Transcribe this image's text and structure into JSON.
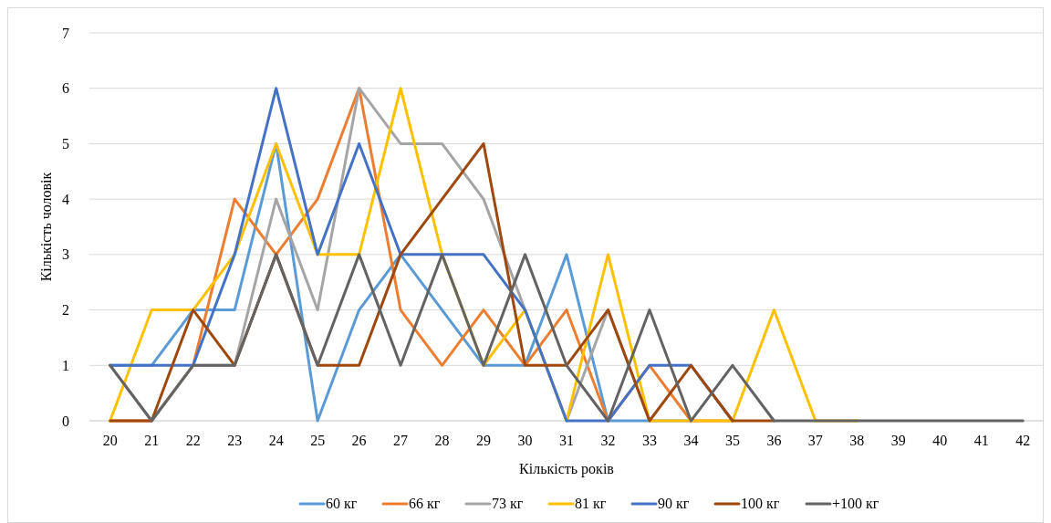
{
  "chart_data": {
    "type": "line",
    "xlabel": "Кількість років",
    "ylabel": "Кількість чоловік",
    "categories": [
      "20",
      "21",
      "22",
      "23",
      "24",
      "25",
      "26",
      "27",
      "28",
      "29",
      "30",
      "31",
      "32",
      "33",
      "34",
      "35",
      "36",
      "37",
      "38",
      "39",
      "40",
      "41",
      "42"
    ],
    "ylim": [
      0,
      7
    ],
    "yticks": [
      0,
      1,
      2,
      3,
      4,
      5,
      6,
      7
    ],
    "grid": "y",
    "legend": "bottom",
    "line_style": "solid",
    "marker": "none",
    "series": [
      {
        "name": "60 кг",
        "color": "#5b9bd5",
        "values": [
          1,
          1,
          2,
          2,
          5,
          0,
          2,
          3,
          2,
          1,
          1,
          3,
          0,
          0,
          0,
          null,
          null,
          null,
          null,
          null,
          null,
          null,
          null
        ]
      },
      {
        "name": "66 кг",
        "color": "#ed7d31",
        "values": [
          0,
          0,
          1,
          4,
          3,
          4,
          6,
          2,
          1,
          2,
          1,
          2,
          0,
          1,
          0,
          0,
          null,
          null,
          null,
          null,
          null,
          null,
          null
        ]
      },
      {
        "name": "73 кг",
        "color": "#a5a5a5",
        "values": [
          1,
          0,
          1,
          1,
          4,
          2,
          6,
          5,
          5,
          4,
          2,
          0,
          2,
          0,
          null,
          null,
          null,
          null,
          null,
          null,
          null,
          null,
          null
        ]
      },
      {
        "name": "81 кг",
        "color": "#ffc000",
        "values": [
          0,
          2,
          2,
          3,
          5,
          3,
          3,
          6,
          3,
          1,
          2,
          0,
          3,
          0,
          0,
          0,
          2,
          0,
          0,
          null,
          null,
          null,
          null
        ]
      },
      {
        "name": "90 кг",
        "color": "#4472c4",
        "values": [
          1,
          1,
          1,
          3,
          6,
          3,
          5,
          3,
          3,
          3,
          2,
          0,
          0,
          1,
          1,
          0,
          null,
          null,
          null,
          null,
          null,
          null,
          null
        ]
      },
      {
        "name": "100 кг",
        "color": "#9e480e",
        "values": [
          0,
          0,
          2,
          1,
          3,
          1,
          1,
          3,
          4,
          5,
          1,
          1,
          2,
          0,
          1,
          0,
          0,
          null,
          null,
          null,
          null,
          null,
          null
        ]
      },
      {
        "name": "+100 кг",
        "color": "#636363",
        "values": [
          1,
          0,
          1,
          1,
          3,
          1,
          3,
          1,
          3,
          1,
          3,
          1,
          0,
          2,
          0,
          1,
          0,
          0,
          0,
          0,
          0,
          0,
          0
        ]
      }
    ]
  }
}
